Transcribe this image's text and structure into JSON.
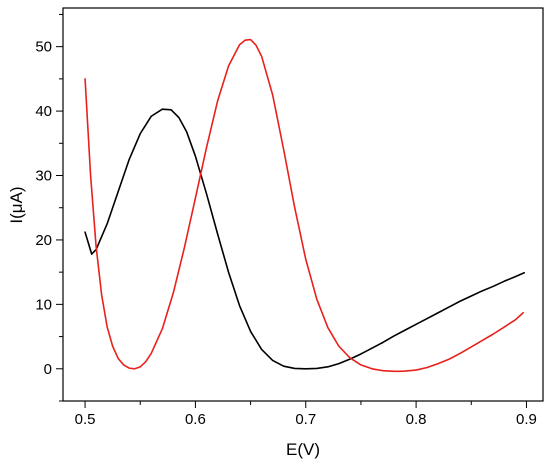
{
  "chart_data": {
    "type": "line",
    "title": "",
    "xlabel": "E(V)",
    "ylabel": "I(μA)",
    "xlim": [
      0.48,
      0.915
    ],
    "ylim": [
      -5,
      56
    ],
    "grid": false,
    "legend": "none",
    "x_ticks": [
      0.5,
      0.6,
      0.7,
      0.8,
      0.9
    ],
    "x_tick_labels": [
      "0.5",
      "0.6",
      "0.7",
      "0.8",
      "0.9"
    ],
    "y_ticks": [
      0,
      10,
      20,
      30,
      40,
      50
    ],
    "y_tick_labels": [
      "0",
      "10",
      "20",
      "30",
      "40",
      "50"
    ],
    "series": [
      {
        "color": "#000000",
        "x": [
          0.5,
          0.503,
          0.506,
          0.51,
          0.52,
          0.53,
          0.54,
          0.55,
          0.56,
          0.57,
          0.578,
          0.585,
          0.592,
          0.6,
          0.61,
          0.62,
          0.63,
          0.64,
          0.65,
          0.66,
          0.67,
          0.68,
          0.69,
          0.7,
          0.71,
          0.72,
          0.73,
          0.74,
          0.75,
          0.76,
          0.77,
          0.78,
          0.79,
          0.8,
          0.81,
          0.82,
          0.83,
          0.84,
          0.85,
          0.86,
          0.87,
          0.88,
          0.89,
          0.898
        ],
        "y": [
          21.2,
          19.5,
          17.8,
          18.5,
          22.5,
          27.5,
          32.5,
          36.5,
          39.2,
          40.3,
          40.2,
          39.0,
          36.8,
          33.0,
          27.2,
          21.0,
          15.0,
          9.8,
          5.8,
          3.0,
          1.3,
          0.4,
          0.05,
          0.0,
          0.05,
          0.3,
          0.8,
          1.5,
          2.3,
          3.2,
          4.1,
          5.1,
          6.0,
          6.9,
          7.8,
          8.7,
          9.6,
          10.5,
          11.3,
          12.1,
          12.8,
          13.6,
          14.3,
          14.9
        ]
      },
      {
        "color": "#e8211c",
        "x": [
          0.5,
          0.505,
          0.51,
          0.515,
          0.52,
          0.525,
          0.53,
          0.535,
          0.54,
          0.545,
          0.55,
          0.555,
          0.56,
          0.57,
          0.58,
          0.59,
          0.6,
          0.61,
          0.62,
          0.63,
          0.64,
          0.645,
          0.65,
          0.655,
          0.66,
          0.67,
          0.68,
          0.69,
          0.7,
          0.71,
          0.72,
          0.73,
          0.74,
          0.75,
          0.76,
          0.77,
          0.78,
          0.785,
          0.79,
          0.8,
          0.81,
          0.82,
          0.83,
          0.84,
          0.85,
          0.86,
          0.87,
          0.88,
          0.89,
          0.897
        ],
        "y": [
          45.0,
          30.0,
          19.0,
          11.5,
          6.5,
          3.5,
          1.6,
          0.6,
          0.1,
          0.0,
          0.3,
          1.1,
          2.4,
          6.2,
          11.8,
          18.8,
          26.5,
          34.3,
          41.5,
          47.0,
          50.3,
          51.0,
          51.1,
          50.2,
          48.5,
          42.5,
          34.0,
          25.0,
          17.0,
          10.8,
          6.4,
          3.5,
          1.7,
          0.6,
          0.0,
          -0.3,
          -0.4,
          -0.4,
          -0.35,
          -0.2,
          0.2,
          0.8,
          1.5,
          2.4,
          3.4,
          4.4,
          5.4,
          6.5,
          7.6,
          8.7
        ]
      }
    ]
  }
}
